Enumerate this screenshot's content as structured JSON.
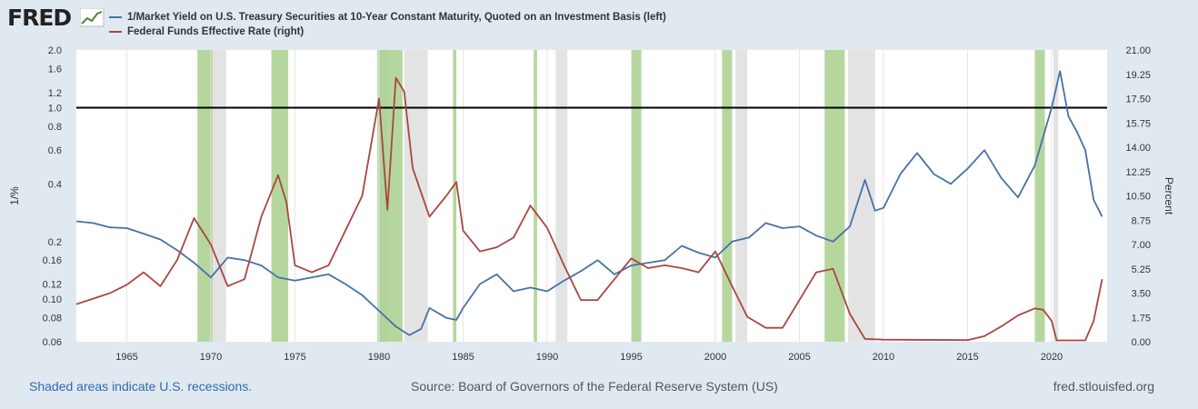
{
  "header": {
    "logo_text": "FRED",
    "series1_label": "1/Market Yield on U.S. Treasury Securities at 10-Year Constant Maturity, Quoted on an Investment Basis (left)",
    "series2_label": "Federal Funds Effective Rate (right)"
  },
  "footer": {
    "recession_note": "Shaded areas indicate U.S. recessions.",
    "source": "Source: Board of Governors of the Federal Reserve System (US)",
    "site": "fred.stlouisfed.org"
  },
  "colors": {
    "series1": "#4572a7",
    "series2": "#aa4643",
    "recession_gray": "#e3e3e3",
    "recession_green": "#a8d08d",
    "plot_bg": "#ffffff",
    "page_bg": "#e1e9f0"
  },
  "chart_data": {
    "type": "line",
    "x_label": "",
    "x_ticks": [
      "1965",
      "1970",
      "1975",
      "1980",
      "1985",
      "1990",
      "1995",
      "2000",
      "2005",
      "2010",
      "2015",
      "2020"
    ],
    "x_range": [
      1962.0,
      2023.3
    ],
    "y_left": {
      "label": "1/%",
      "scale": "log",
      "range": [
        0.06,
        2.0
      ],
      "ticks": [
        "0.06",
        "0.08",
        "0.10",
        "0.12",
        "0.16",
        "0.2",
        "0.4",
        "0.6",
        "0.8",
        "1.0",
        "1.2",
        "1.6",
        "2.0"
      ],
      "reference_line": 1.0
    },
    "y_right": {
      "label": "Percent",
      "scale": "linear",
      "range": [
        0,
        21
      ],
      "ticks": [
        "0.00",
        "1.75",
        "3.50",
        "5.25",
        "7.00",
        "8.75",
        "10.50",
        "12.25",
        "14.00",
        "15.75",
        "17.50",
        "19.25",
        "21.00"
      ]
    },
    "recessions_gray": [
      [
        1970.0,
        1970.9
      ],
      [
        1980.0,
        1980.5
      ],
      [
        1981.5,
        1982.9
      ],
      [
        1990.5,
        1991.2
      ],
      [
        2001.2,
        2001.9
      ],
      [
        2007.9,
        2009.5
      ],
      [
        2020.1,
        2020.4
      ]
    ],
    "recessions_green": [
      [
        1969.2,
        1970.1
      ],
      [
        1973.6,
        1974.6
      ],
      [
        1979.9,
        1981.4
      ],
      [
        1984.4,
        1984.6
      ],
      [
        1989.2,
        1989.4
      ],
      [
        1995.0,
        1995.6
      ],
      [
        2000.4,
        2001.0
      ],
      [
        2006.5,
        2007.7
      ],
      [
        2019.0,
        2019.6
      ]
    ],
    "series": [
      {
        "name": "1/Market Yield on U.S. Treasury Securities at 10-Year Constant Maturity, Quoted on an Investment Basis (left)",
        "axis": "left",
        "points": [
          [
            1962.0,
            0.255
          ],
          [
            1963.0,
            0.25
          ],
          [
            1964.0,
            0.237
          ],
          [
            1965.0,
            0.235
          ],
          [
            1966.0,
            0.22
          ],
          [
            1967.0,
            0.205
          ],
          [
            1968.0,
            0.18
          ],
          [
            1969.0,
            0.155
          ],
          [
            1970.0,
            0.13
          ],
          [
            1971.0,
            0.165
          ],
          [
            1972.0,
            0.16
          ],
          [
            1973.0,
            0.15
          ],
          [
            1974.0,
            0.13
          ],
          [
            1975.0,
            0.125
          ],
          [
            1976.0,
            0.13
          ],
          [
            1977.0,
            0.135
          ],
          [
            1978.0,
            0.12
          ],
          [
            1979.0,
            0.105
          ],
          [
            1980.0,
            0.087
          ],
          [
            1981.0,
            0.072
          ],
          [
            1981.8,
            0.065
          ],
          [
            1982.5,
            0.07
          ],
          [
            1983.0,
            0.09
          ],
          [
            1984.0,
            0.08
          ],
          [
            1984.6,
            0.078
          ],
          [
            1985.0,
            0.09
          ],
          [
            1986.0,
            0.12
          ],
          [
            1987.0,
            0.135
          ],
          [
            1988.0,
            0.11
          ],
          [
            1989.0,
            0.115
          ],
          [
            1990.0,
            0.11
          ],
          [
            1991.0,
            0.125
          ],
          [
            1992.0,
            0.14
          ],
          [
            1993.0,
            0.16
          ],
          [
            1994.0,
            0.135
          ],
          [
            1995.0,
            0.15
          ],
          [
            1996.0,
            0.155
          ],
          [
            1997.0,
            0.16
          ],
          [
            1998.0,
            0.19
          ],
          [
            1999.0,
            0.175
          ],
          [
            2000.0,
            0.165
          ],
          [
            2001.0,
            0.2
          ],
          [
            2002.0,
            0.21
          ],
          [
            2003.0,
            0.25
          ],
          [
            2004.0,
            0.235
          ],
          [
            2005.0,
            0.24
          ],
          [
            2006.0,
            0.215
          ],
          [
            2007.0,
            0.2
          ],
          [
            2008.0,
            0.24
          ],
          [
            2008.9,
            0.42
          ],
          [
            2009.5,
            0.29
          ],
          [
            2010.0,
            0.3
          ],
          [
            2011.0,
            0.45
          ],
          [
            2012.0,
            0.58
          ],
          [
            2013.0,
            0.45
          ],
          [
            2014.0,
            0.4
          ],
          [
            2015.0,
            0.48
          ],
          [
            2016.0,
            0.6
          ],
          [
            2017.0,
            0.43
          ],
          [
            2018.0,
            0.34
          ],
          [
            2019.0,
            0.5
          ],
          [
            2020.0,
            1.0
          ],
          [
            2020.5,
            1.55
          ],
          [
            2021.0,
            0.9
          ],
          [
            2021.5,
            0.75
          ],
          [
            2022.0,
            0.6
          ],
          [
            2022.5,
            0.33
          ],
          [
            2023.0,
            0.27
          ]
        ]
      },
      {
        "name": "Federal Funds Effective Rate (right)",
        "axis": "right",
        "points": [
          [
            1962.0,
            2.7
          ],
          [
            1963.0,
            3.1
          ],
          [
            1964.0,
            3.5
          ],
          [
            1965.0,
            4.1
          ],
          [
            1966.0,
            5.0
          ],
          [
            1967.0,
            4.0
          ],
          [
            1968.0,
            5.9
          ],
          [
            1969.0,
            8.9
          ],
          [
            1970.0,
            7.0
          ],
          [
            1971.0,
            4.0
          ],
          [
            1972.0,
            4.5
          ],
          [
            1973.0,
            9.0
          ],
          [
            1974.0,
            12.0
          ],
          [
            1974.5,
            10.0
          ],
          [
            1975.0,
            5.5
          ],
          [
            1976.0,
            5.0
          ],
          [
            1977.0,
            5.5
          ],
          [
            1978.0,
            8.0
          ],
          [
            1979.0,
            10.5
          ],
          [
            1980.0,
            17.5
          ],
          [
            1980.5,
            9.5
          ],
          [
            1981.0,
            19.0
          ],
          [
            1981.5,
            18.0
          ],
          [
            1982.0,
            12.5
          ],
          [
            1983.0,
            9.0
          ],
          [
            1984.0,
            10.5
          ],
          [
            1984.6,
            11.5
          ],
          [
            1985.0,
            8.0
          ],
          [
            1986.0,
            6.5
          ],
          [
            1987.0,
            6.8
          ],
          [
            1988.0,
            7.5
          ],
          [
            1989.0,
            9.8
          ],
          [
            1990.0,
            8.2
          ],
          [
            1991.0,
            5.5
          ],
          [
            1992.0,
            3.0
          ],
          [
            1993.0,
            3.0
          ],
          [
            1994.0,
            4.5
          ],
          [
            1995.0,
            6.0
          ],
          [
            1996.0,
            5.3
          ],
          [
            1997.0,
            5.5
          ],
          [
            1998.0,
            5.3
          ],
          [
            1999.0,
            5.0
          ],
          [
            2000.0,
            6.5
          ],
          [
            2001.0,
            4.0
          ],
          [
            2001.9,
            1.8
          ],
          [
            2003.0,
            1.0
          ],
          [
            2004.0,
            1.0
          ],
          [
            2005.0,
            3.0
          ],
          [
            2006.0,
            5.0
          ],
          [
            2007.0,
            5.25
          ],
          [
            2008.0,
            2.0
          ],
          [
            2008.9,
            0.2
          ],
          [
            2010.0,
            0.15
          ],
          [
            2015.0,
            0.12
          ],
          [
            2016.0,
            0.4
          ],
          [
            2017.0,
            1.1
          ],
          [
            2018.0,
            1.9
          ],
          [
            2019.0,
            2.4
          ],
          [
            2019.5,
            2.3
          ],
          [
            2020.0,
            1.5
          ],
          [
            2020.3,
            0.1
          ],
          [
            2022.0,
            0.1
          ],
          [
            2022.5,
            1.5
          ],
          [
            2023.0,
            4.5
          ]
        ]
      }
    ]
  }
}
